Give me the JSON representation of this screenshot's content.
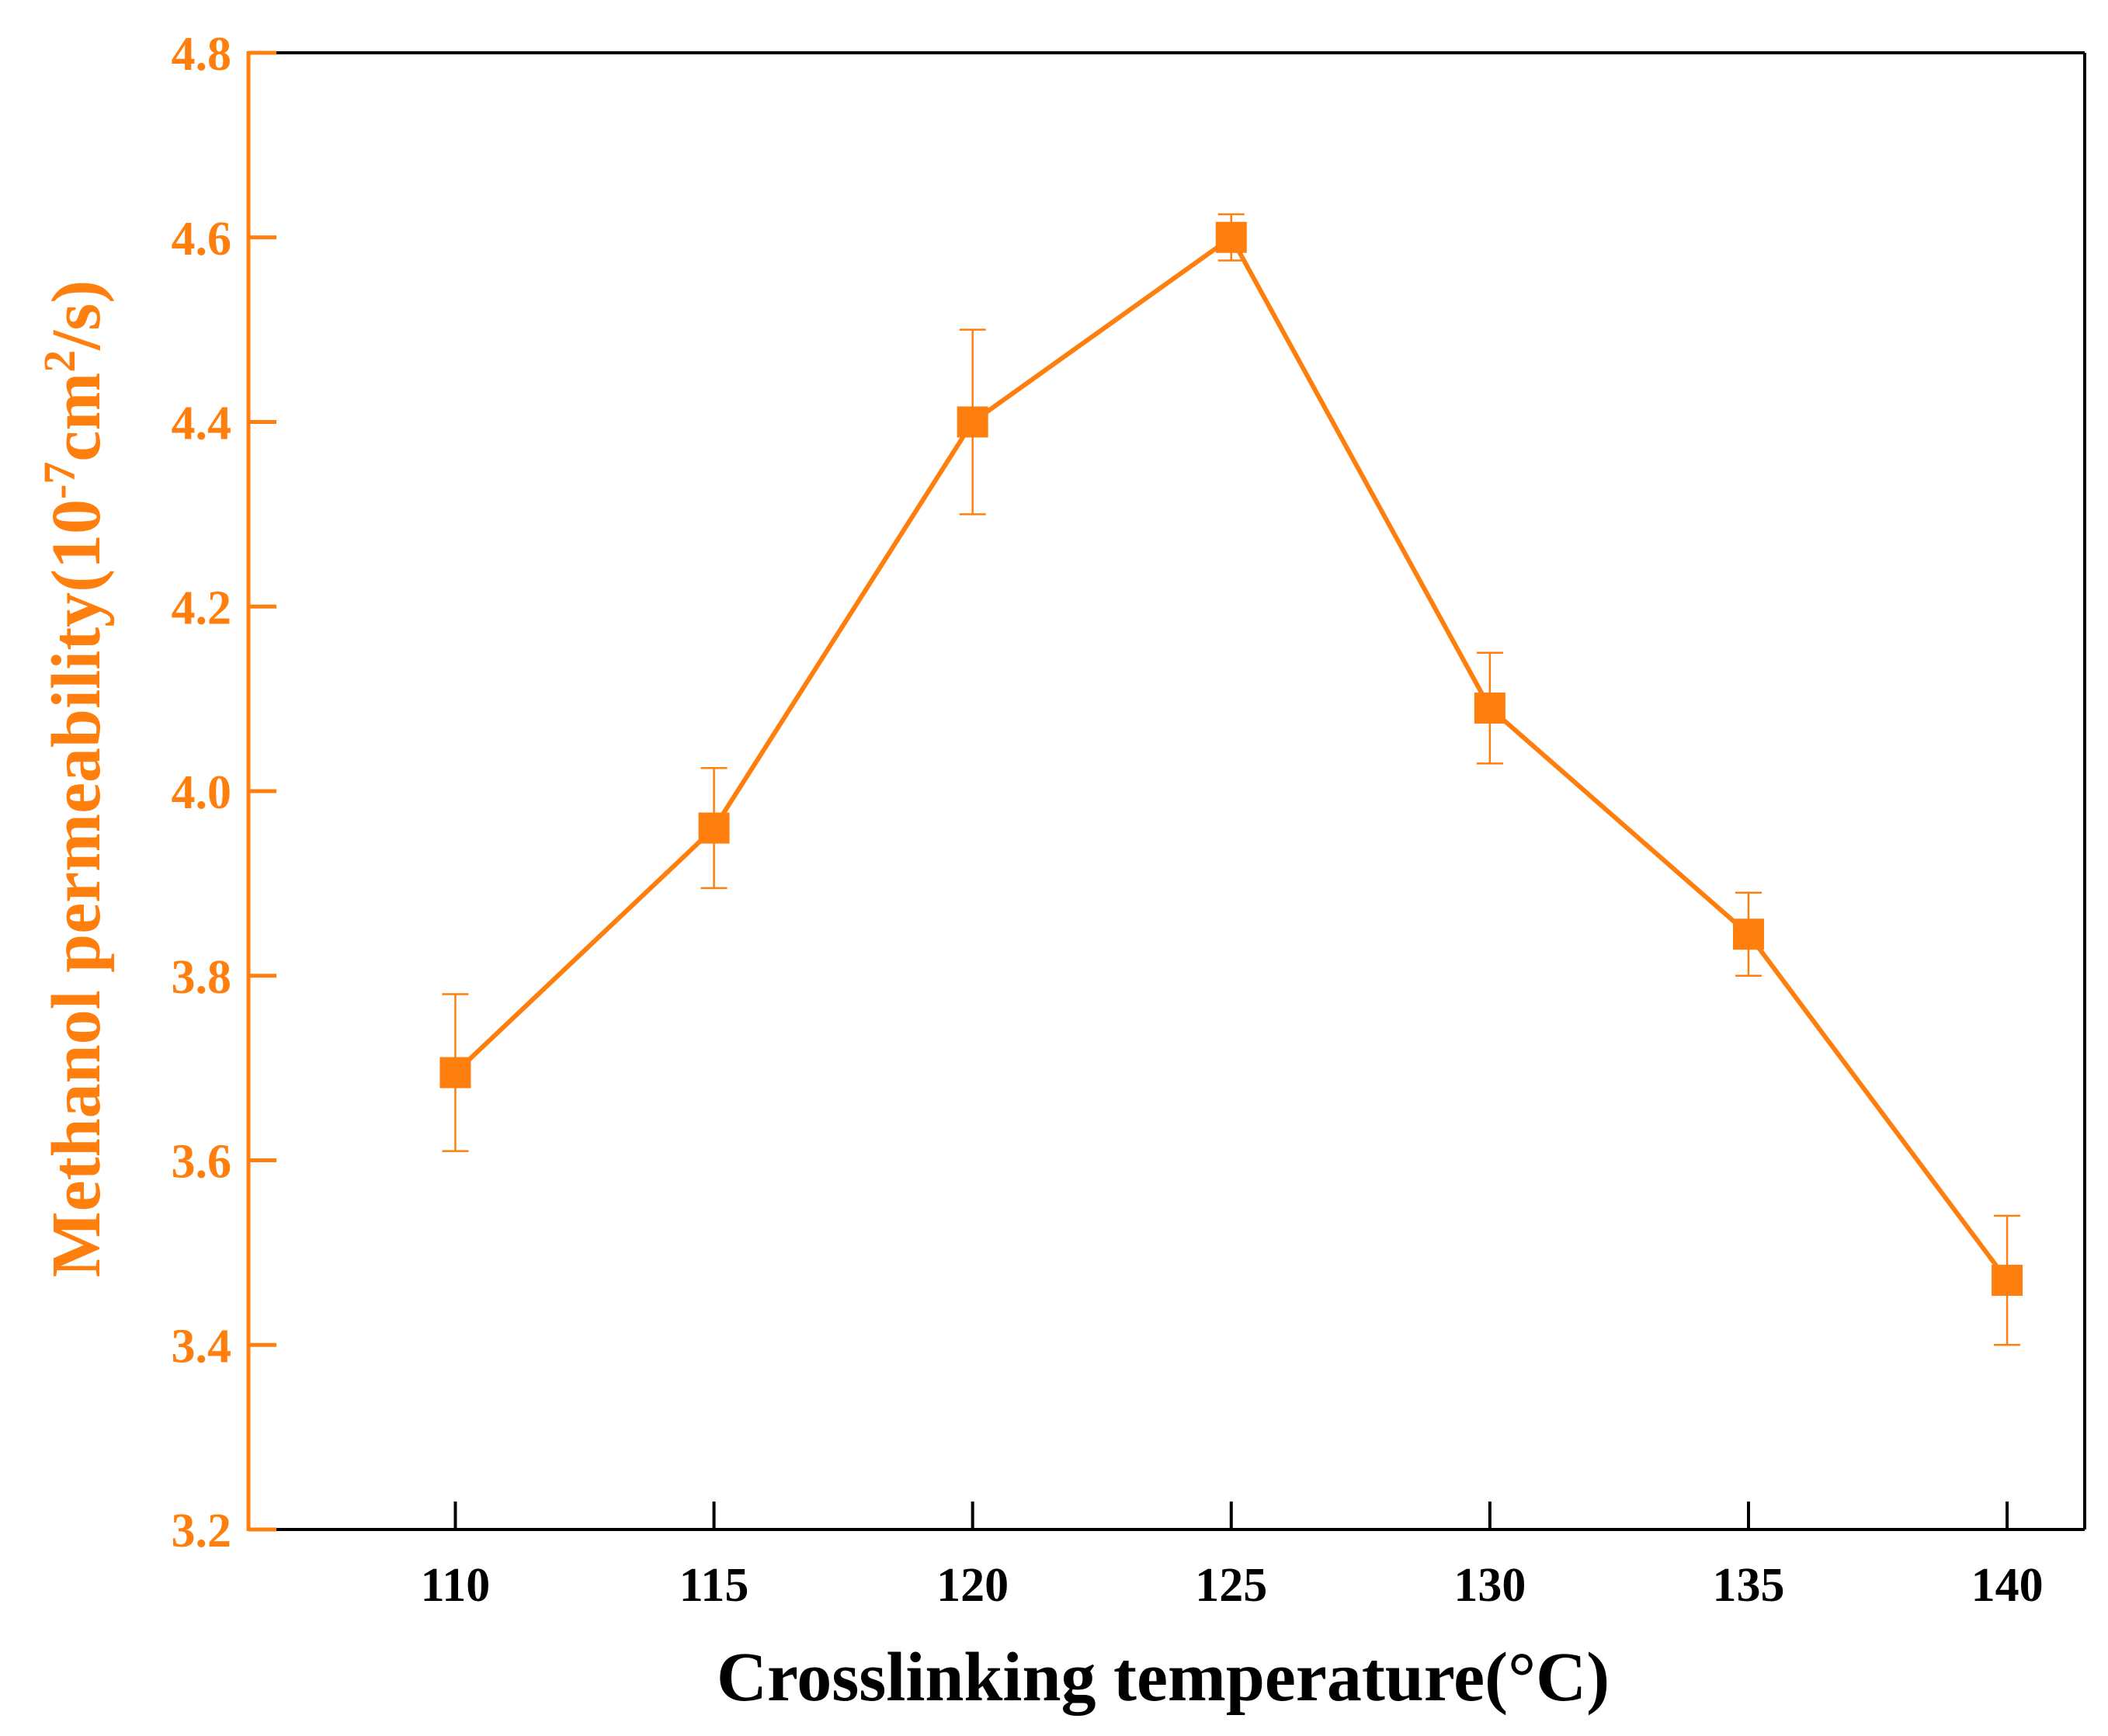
{
  "colors": {
    "series": "#FF7F0E",
    "frame": "#000000",
    "y_axis": "#FF7F0E",
    "x_text": "#000000"
  },
  "chart_data": {
    "type": "line",
    "title": "",
    "xlabel": "Crosslinking temperature(°C)",
    "ylabel": {
      "prefix": "Methanol permeability(10",
      "exp1": "-7",
      "mid": "cm",
      "exp2": "2",
      "suffix": "/s)"
    },
    "x_ticks": [
      "110",
      "115",
      "120",
      "125",
      "130",
      "135",
      "140"
    ],
    "y_ticks": [
      "3.2",
      "3.4",
      "3.6",
      "3.8",
      "4.0",
      "4.2",
      "4.4",
      "4.6",
      "4.8"
    ],
    "xlim": [
      106,
      141.5
    ],
    "ylim": [
      3.2,
      4.8
    ],
    "marker": "square",
    "series": [
      {
        "name": "Methanol permeability",
        "x": [
          110,
          115,
          120,
          125,
          130,
          135,
          140
        ],
        "y": [
          3.695,
          3.96,
          4.4,
          4.6,
          4.09,
          3.845,
          3.47
        ],
        "err_upper": [
          0.085,
          0.065,
          0.1,
          0.025,
          0.06,
          0.045,
          0.07
        ],
        "err_lower": [
          0.085,
          0.065,
          0.1,
          0.025,
          0.06,
          0.045,
          0.07
        ]
      }
    ]
  }
}
